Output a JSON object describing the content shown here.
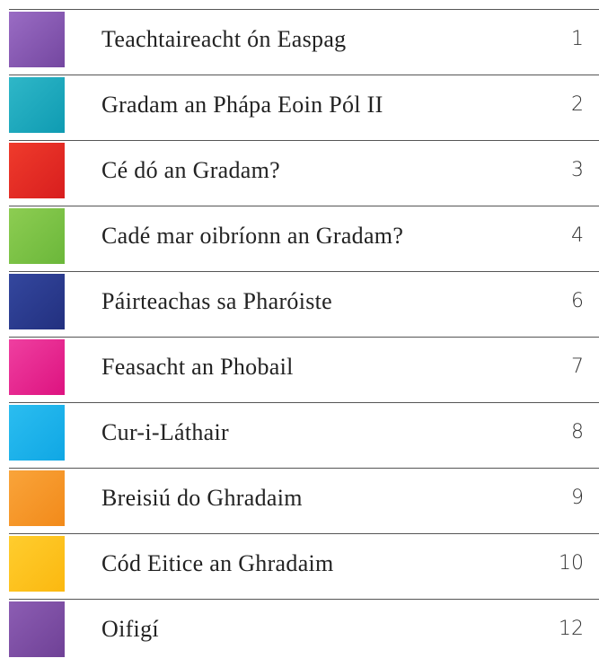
{
  "toc": {
    "entries": [
      {
        "title": "Teachtaireacht ón Easpag",
        "page": 1
      },
      {
        "title": "Gradam an Phápa Eoin Pól II",
        "page": 2
      },
      {
        "title": "Cé dó an Gradam?",
        "page": 3
      },
      {
        "title": "Cadé mar oibríonn an Gradam?",
        "page": 4
      },
      {
        "title": "Páirteachas sa Pharóiste",
        "page": 6
      },
      {
        "title": "Feasacht an Phobail",
        "page": 7
      },
      {
        "title": "Cur-i-Láthair",
        "page": 8
      },
      {
        "title": "Breisiú do Ghradaim",
        "page": 9
      },
      {
        "title": "Cód Eitice an Ghradaim",
        "page": 10
      },
      {
        "title": "Oifigí",
        "page": 12
      }
    ]
  }
}
